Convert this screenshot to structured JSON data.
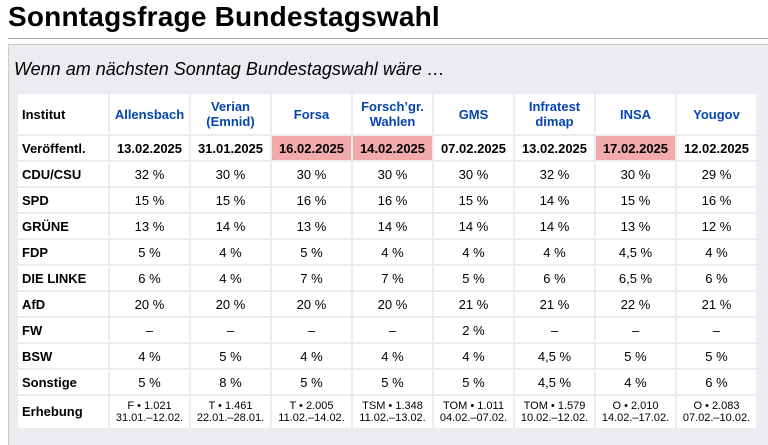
{
  "page": {
    "title": "Sonntagsfrage Bundestagswahl",
    "subtitle": "Wenn am nächsten Sonntag Bundestagswahl wäre …"
  },
  "table": {
    "header_label": "Institut",
    "institutes": [
      {
        "name": "Allensbach",
        "date": "13.02.2025",
        "highlight": false,
        "erhebung_a": "F • 1.021",
        "erhebung_b": "31.01.–12.02."
      },
      {
        "name": "Verian\n(Emnid)",
        "date": "31.01.2025",
        "highlight": false,
        "erhebung_a": "T • 1.461",
        "erhebung_b": "22.01.–28.01."
      },
      {
        "name": "Forsa",
        "date": "16.02.2025",
        "highlight": true,
        "erhebung_a": "T • 2.005",
        "erhebung_b": "11.02.–14.02."
      },
      {
        "name": "Forsch’gr.\nWahlen",
        "date": "14.02.2025",
        "highlight": true,
        "erhebung_a": "TSM • 1.348",
        "erhebung_b": "11.02.–13.02."
      },
      {
        "name": "GMS",
        "date": "07.02.2025",
        "highlight": false,
        "erhebung_a": "TOM • 1.011",
        "erhebung_b": "04.02.–07.02."
      },
      {
        "name": "Infratest\ndimap",
        "date": "13.02.2025",
        "highlight": false,
        "erhebung_a": "TOM • 1.579",
        "erhebung_b": "10.02.–12.02."
      },
      {
        "name": "INSA",
        "date": "17.02.2025",
        "highlight": true,
        "erhebung_a": "O • 2.010",
        "erhebung_b": "14.02.–17.02."
      },
      {
        "name": "Yougov",
        "date": "12.02.2025",
        "highlight": false,
        "erhebung_a": "O • 2.083",
        "erhebung_b": "07.02.–10.02."
      }
    ],
    "published_label": "Veröffentl.",
    "rows": [
      {
        "party": "CDU/CSU",
        "values": [
          "32 %",
          "30 %",
          "30 %",
          "30 %",
          "30 %",
          "32 %",
          "30 %",
          "29 %"
        ]
      },
      {
        "party": "SPD",
        "values": [
          "15 %",
          "15 %",
          "16 %",
          "16 %",
          "15 %",
          "14 %",
          "15 %",
          "16 %"
        ]
      },
      {
        "party": "GRÜNE",
        "values": [
          "13 %",
          "14 %",
          "13 %",
          "14 %",
          "14 %",
          "14 %",
          "13 %",
          "12 %"
        ]
      },
      {
        "party": "FDP",
        "values": [
          "5 %",
          "4 %",
          "5 %",
          "4 %",
          "4 %",
          "4 %",
          "4,5 %",
          "4 %"
        ]
      },
      {
        "party": "DIE LINKE",
        "values": [
          "6 %",
          "4 %",
          "7 %",
          "7 %",
          "5 %",
          "6 %",
          "6,5 %",
          "6 %"
        ]
      },
      {
        "party": "AfD",
        "values": [
          "20 %",
          "20 %",
          "20 %",
          "20 %",
          "21 %",
          "21 %",
          "22 %",
          "21 %"
        ]
      },
      {
        "party": "FW",
        "values": [
          "–",
          "–",
          "–",
          "–",
          "2 %",
          "–",
          "–",
          "–"
        ]
      },
      {
        "party": "BSW",
        "values": [
          "4 %",
          "5 %",
          "4 %",
          "4 %",
          "4 %",
          "4,5 %",
          "5 %",
          "5 %"
        ]
      },
      {
        "party": "Sonstige",
        "values": [
          "5 %",
          "8 %",
          "5 %",
          "5 %",
          "5 %",
          "4,5 %",
          "4 %",
          "6 %"
        ]
      }
    ],
    "erhebung_label": "Erhebung"
  },
  "colors": {
    "link": "#0645ad",
    "highlight": "#f2aaaa",
    "panel": "#eaecf0"
  }
}
